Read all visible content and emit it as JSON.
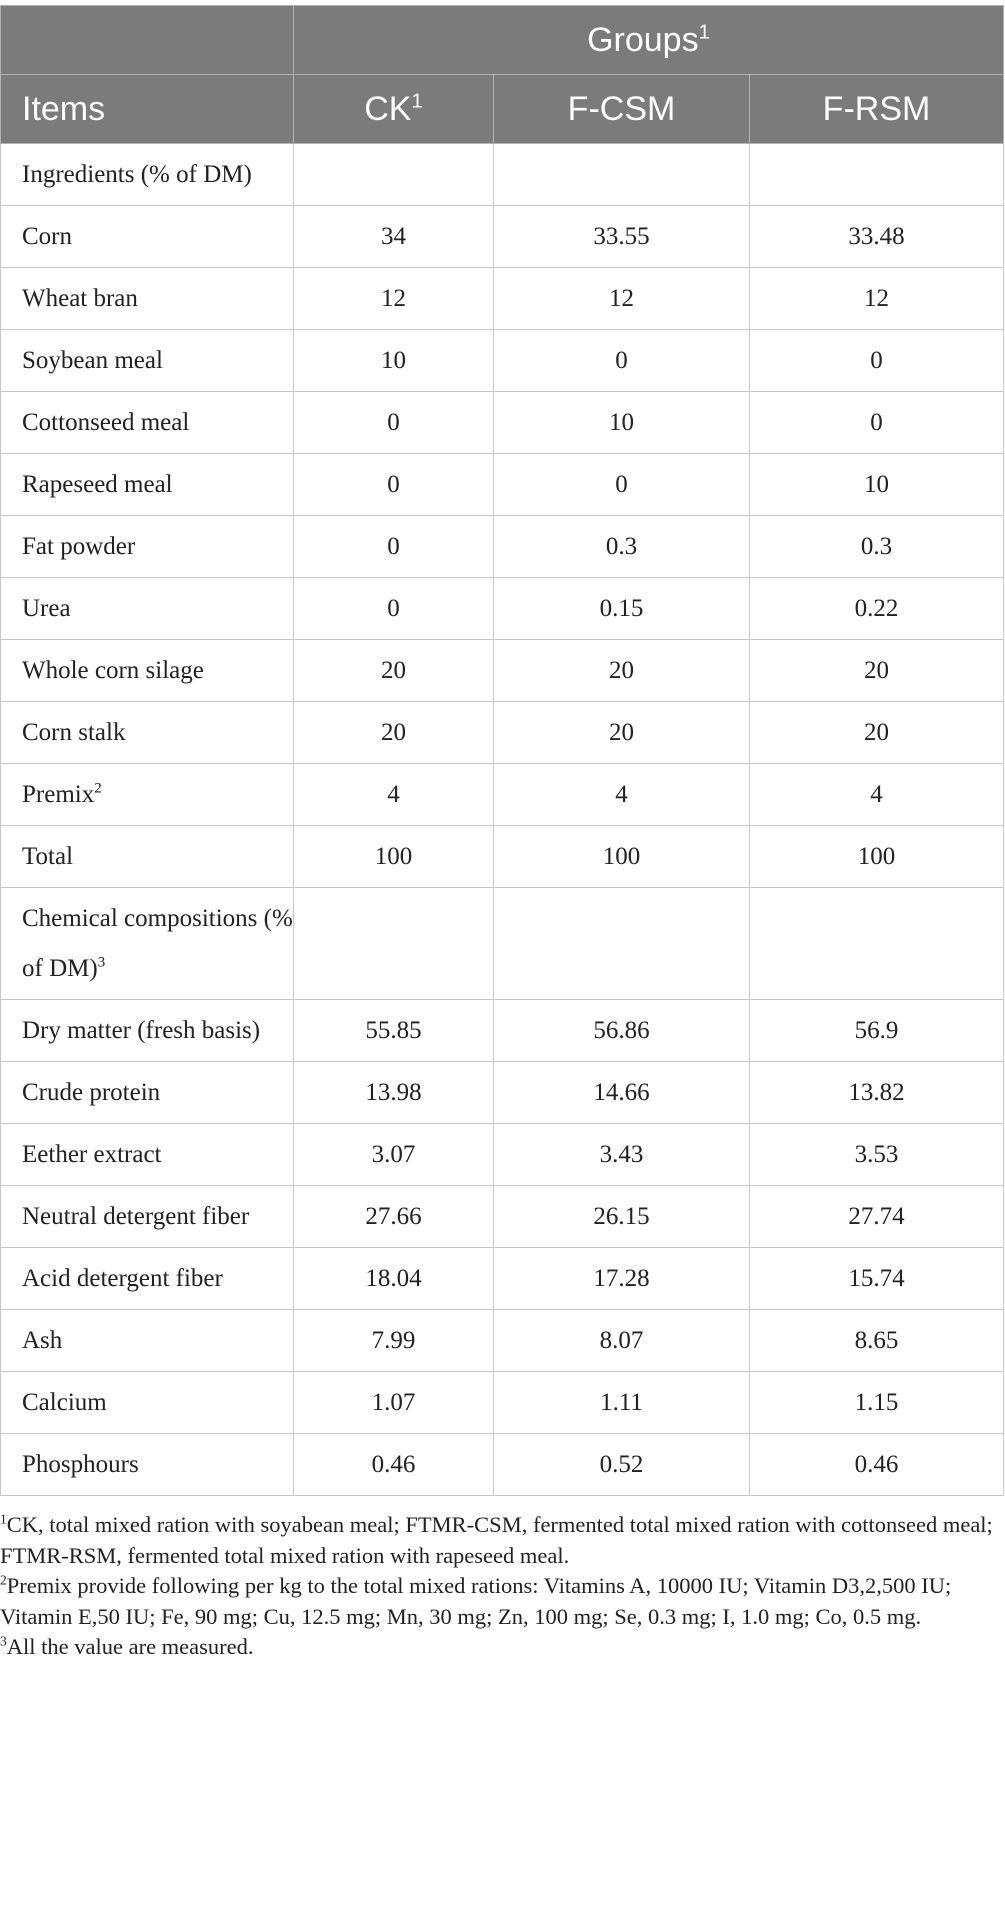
{
  "table": {
    "groups": "Groups",
    "groups_sup": "1",
    "columns": [
      {
        "label": "Items"
      },
      {
        "label": "CK",
        "sup": "1"
      },
      {
        "label": "F-CSM"
      },
      {
        "label": "F-RSM"
      }
    ],
    "rows": [
      {
        "item": "Ingredients (% of DM)"
      },
      {
        "item": "Corn",
        "values": [
          34,
          33.55,
          33.48
        ]
      },
      {
        "item": "Wheat bran",
        "values": [
          12,
          12,
          12
        ]
      },
      {
        "item": "Soybean meal",
        "values": [
          10,
          0,
          0
        ]
      },
      {
        "item": "Cottonseed meal",
        "values": [
          0,
          10,
          0
        ]
      },
      {
        "item": "Rapeseed meal",
        "values": [
          0,
          0,
          10
        ]
      },
      {
        "item": "Fat powder",
        "values": [
          0,
          0.3,
          0.3
        ]
      },
      {
        "item": "Urea",
        "values": [
          0,
          0.15,
          0.22
        ]
      },
      {
        "item": "Whole corn silage",
        "values": [
          20,
          20,
          20
        ]
      },
      {
        "item": "Corn stalk",
        "values": [
          20,
          20,
          20
        ]
      },
      {
        "item": "Premix",
        "sup": "2",
        "values": [
          4,
          4,
          4
        ]
      },
      {
        "item": "Total",
        "values": [
          100,
          100,
          100
        ]
      },
      {
        "item": "Chemical compositions (% of DM)",
        "sup": "3"
      },
      {
        "item": "Dry matter (fresh basis)",
        "values": [
          55.85,
          56.86,
          56.9
        ]
      },
      {
        "item": "Crude protein",
        "values": [
          13.98,
          14.66,
          13.82
        ]
      },
      {
        "item": "Eether extract",
        "values": [
          3.07,
          3.43,
          3.53
        ]
      },
      {
        "item": "Neutral detergent fiber",
        "values": [
          27.66,
          26.15,
          27.74
        ]
      },
      {
        "item": "Acid detergent fiber",
        "values": [
          18.04,
          17.28,
          15.74
        ]
      },
      {
        "item": "Ash",
        "values": [
          7.99,
          8.07,
          8.65
        ]
      },
      {
        "item": "Calcium",
        "values": [
          1.07,
          1.11,
          1.15
        ]
      },
      {
        "item": "Phosphours",
        "values": [
          0.46,
          0.52,
          0.46
        ]
      }
    ]
  },
  "footnotes": [
    {
      "mark": "1",
      "text": "CK, total mixed ration with soyabean meal; FTMR-CSM, fermented total mixed ration with cottonseed meal; FTMR-RSM, fermented total mixed ration with rapeseed meal."
    },
    {
      "mark": "2",
      "text": "Premix provide following per kg to the total mixed rations: Vitamins A, 10000 IU; Vitamin D3,2,500 IU; Vitamin E,50 IU; Fe, 90 mg; Cu, 12.5 mg; Mn, 30 mg; Zn, 100 mg; Se, 0.3 mg; I, 1.0 mg; Co, 0.5 mg."
    },
    {
      "mark": "3",
      "text": "All the value are measured."
    }
  ]
}
